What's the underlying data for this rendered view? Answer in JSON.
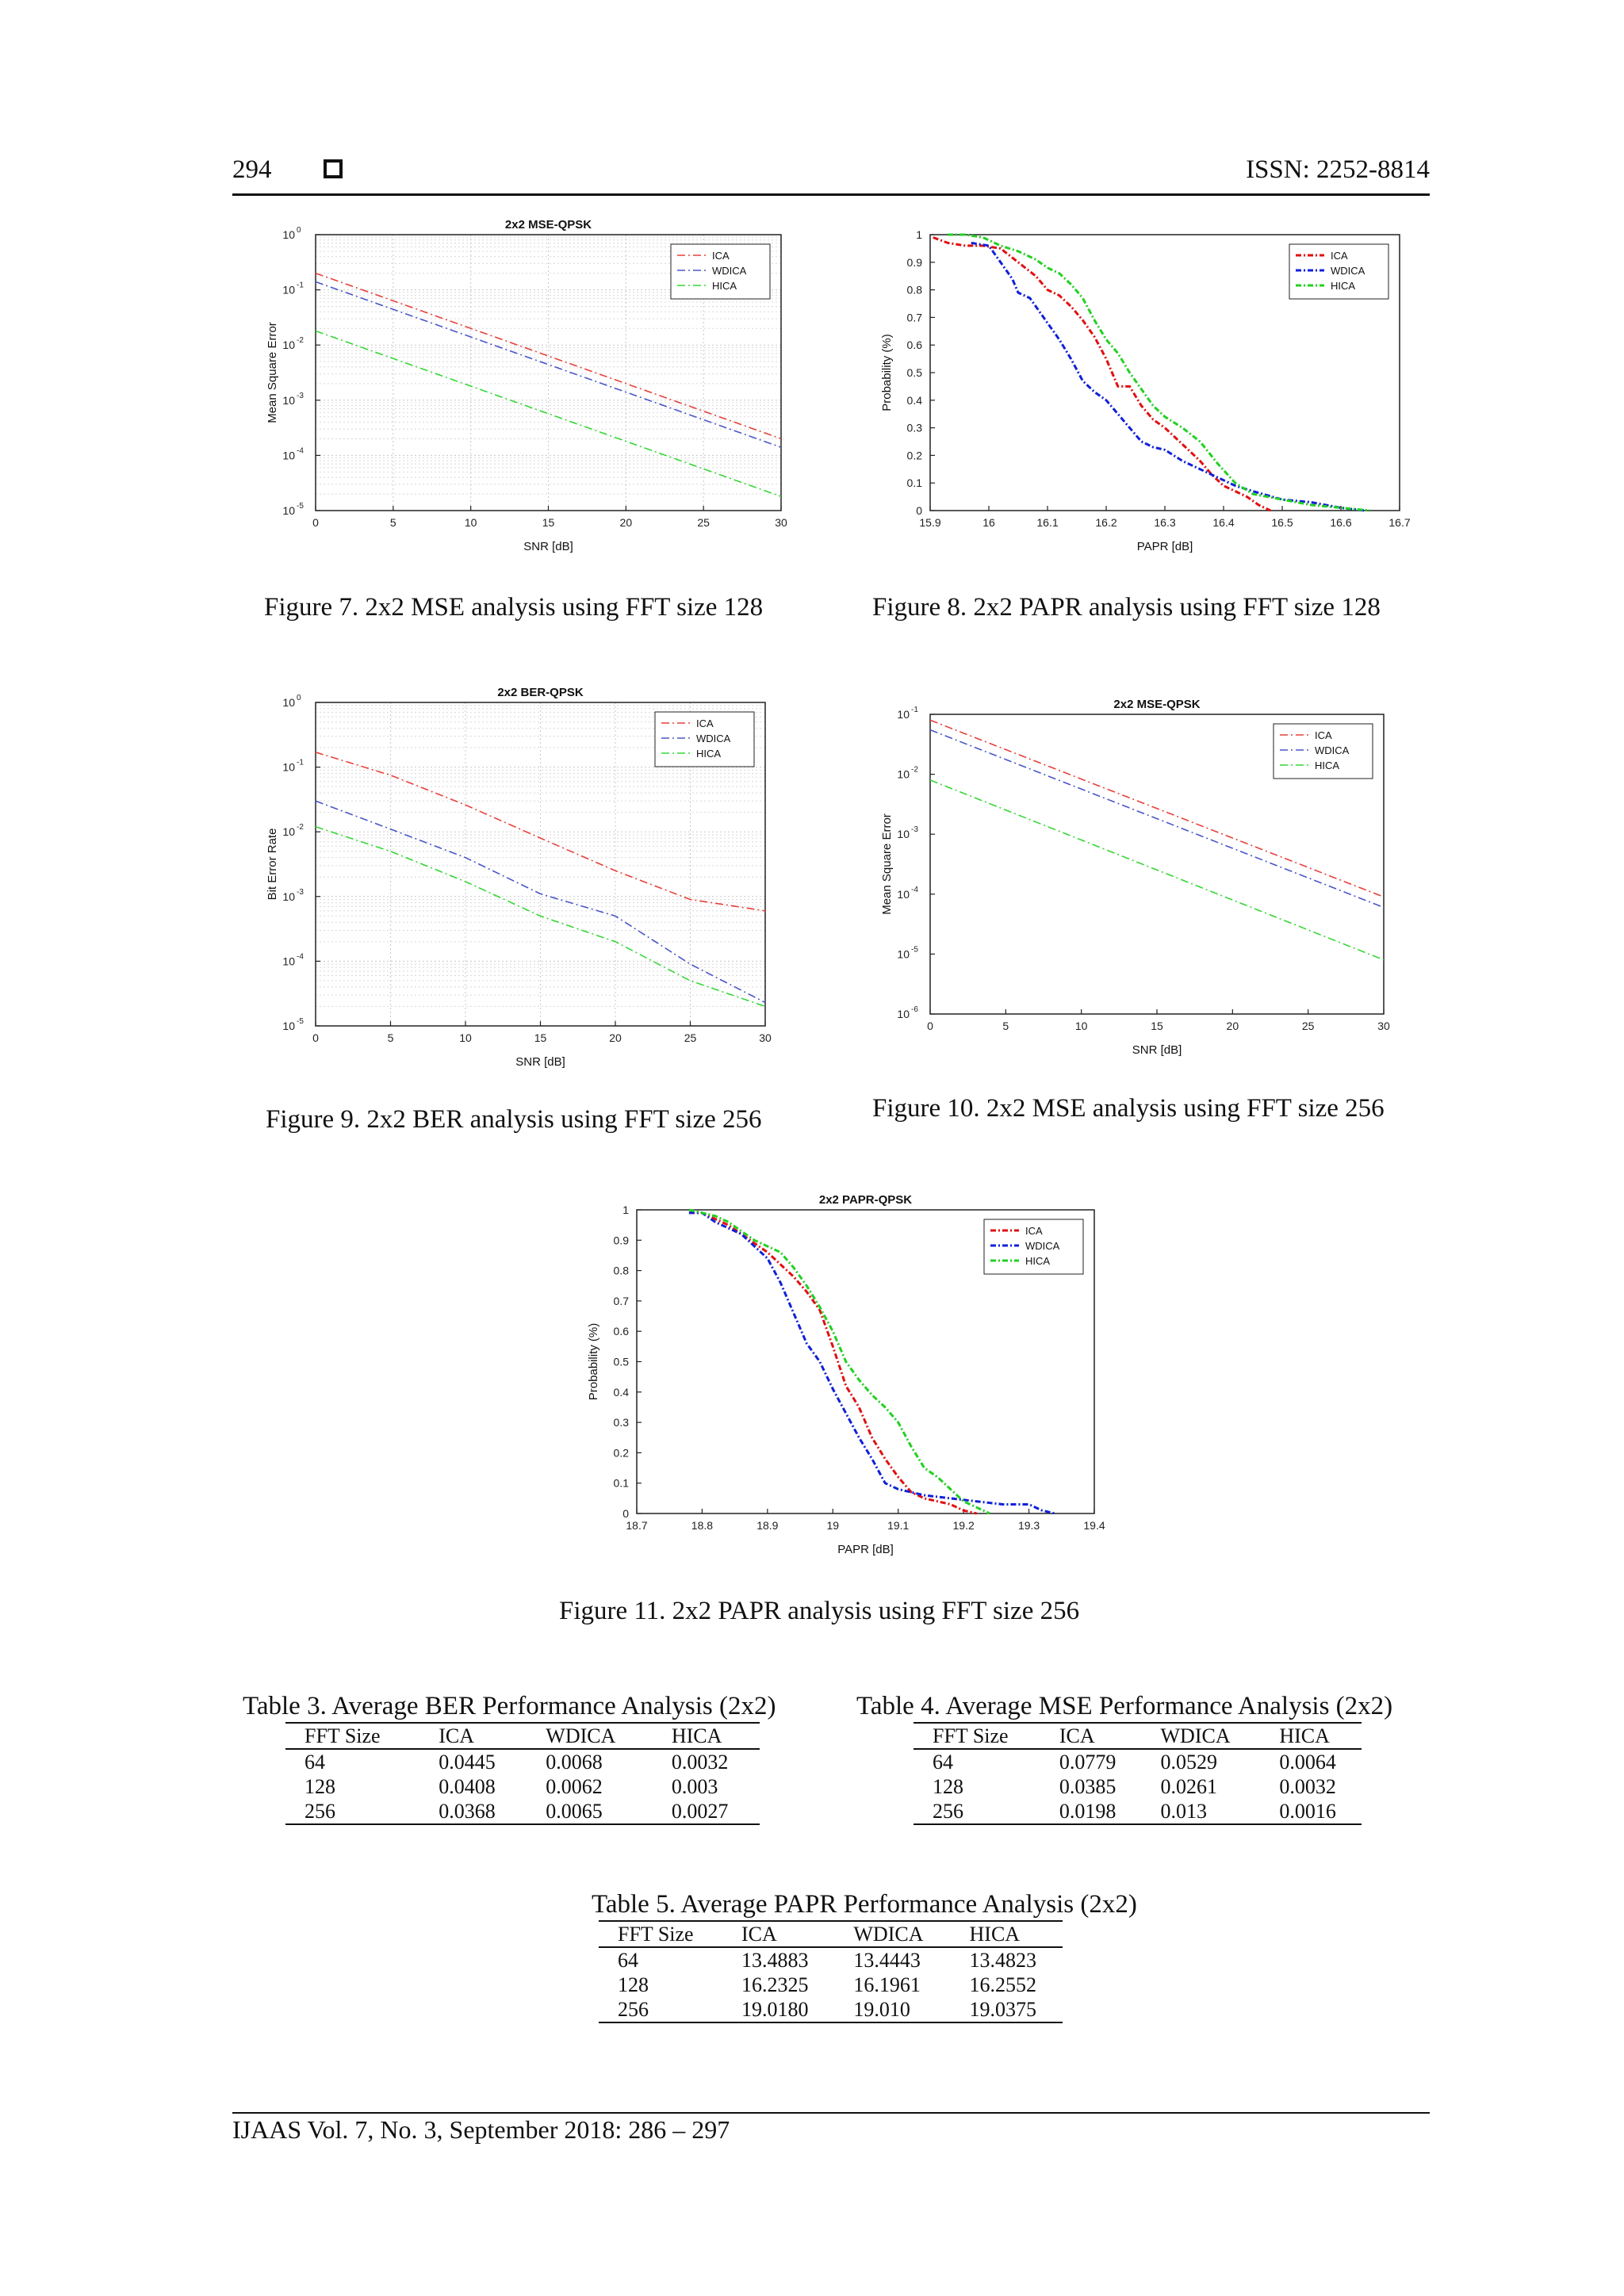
{
  "header": {
    "page_number": "294",
    "issn": "ISSN: 2252-8814"
  },
  "footer": {
    "citation": "IJAAS  Vol. 7, No. 3, September 2018:  286 – 297"
  },
  "captions": {
    "fig7": "Figure 7. 2x2 MSE analysis using FFT size 128",
    "fig8": "Figure 8. 2x2 PAPR analysis using FFT size 128",
    "fig9": "Figure 9. 2x2 BER analysis using FFT size 256",
    "fig10": "Figure 10. 2x2 MSE analysis using FFT size 256",
    "fig11": "Figure 11. 2x2 PAPR analysis using FFT size 256"
  },
  "chart_data": [
    {
      "id": "fig7",
      "type": "line",
      "log_y": true,
      "title": "2x2 MSE-QPSK",
      "xlabel": "SNR [dB]",
      "ylabel": "Mean Square Error",
      "xlim": [
        0,
        30
      ],
      "ylim_exp": [
        -5,
        0
      ],
      "xticks": [
        "0",
        "5",
        "10",
        "15",
        "20",
        "25",
        "30"
      ],
      "yticks": [
        "10",
        "10",
        "10",
        "10",
        "10",
        "10"
      ],
      "ytick_exps": [
        "-5",
        "-4",
        "-3",
        "-2",
        "-1",
        "0"
      ],
      "grid": true,
      "legend": "top-right",
      "dash": "dashdot",
      "series": [
        {
          "name": "ICA",
          "color": "#e8403a",
          "x": [
            0,
            30
          ],
          "y": [
            0.2,
            0.0002
          ]
        },
        {
          "name": "WDICA",
          "color": "#4a56c8",
          "x": [
            0,
            30
          ],
          "y": [
            0.14,
            0.00014
          ]
        },
        {
          "name": "HICA",
          "color": "#36d636",
          "x": [
            0,
            30
          ],
          "y": [
            0.018,
            1.8e-05
          ]
        }
      ]
    },
    {
      "id": "fig8",
      "type": "line",
      "log_y": false,
      "title": "",
      "xlabel": "PAPR [dB]",
      "ylabel": "Probability (%)",
      "xlim": [
        15.9,
        16.7
      ],
      "ylim": [
        0,
        1
      ],
      "xticks": [
        "15.9",
        "16",
        "16.1",
        "16.2",
        "16.3",
        "16.4",
        "16.5",
        "16.6",
        "16.7"
      ],
      "yticks": [
        "0",
        "0.1",
        "0.2",
        "0.3",
        "0.4",
        "0.5",
        "0.6",
        "0.7",
        "0.8",
        "0.9",
        "1"
      ],
      "grid": false,
      "legend": "top-right",
      "dash": "dotdash",
      "series": [
        {
          "name": "ICA",
          "color": "#e01010",
          "x": [
            15.905,
            15.93,
            15.96,
            15.99,
            16.02,
            16.05,
            16.08,
            16.1,
            16.12,
            16.14,
            16.16,
            16.18,
            16.2,
            16.22,
            16.24,
            16.26,
            16.28,
            16.3,
            16.32,
            16.34,
            16.36,
            16.38,
            16.4,
            16.42,
            16.44,
            16.46,
            16.47,
            16.48
          ],
          "y": [
            0.99,
            0.97,
            0.96,
            0.96,
            0.95,
            0.9,
            0.85,
            0.8,
            0.78,
            0.74,
            0.69,
            0.63,
            0.55,
            0.45,
            0.45,
            0.38,
            0.33,
            0.3,
            0.26,
            0.22,
            0.18,
            0.13,
            0.09,
            0.07,
            0.05,
            0.02,
            0.01,
            0
          ]
        },
        {
          "name": "WDICA",
          "color": "#1020d8",
          "x": [
            15.97,
            16.0,
            16.02,
            16.04,
            16.05,
            16.07,
            16.09,
            16.1,
            16.12,
            16.14,
            16.16,
            16.18,
            16.2,
            16.22,
            16.24,
            16.26,
            16.28,
            16.3,
            16.33,
            16.36,
            16.39,
            16.42,
            16.45,
            16.5,
            16.55,
            16.6,
            16.64
          ],
          "y": [
            0.97,
            0.96,
            0.9,
            0.84,
            0.79,
            0.77,
            0.71,
            0.68,
            0.62,
            0.55,
            0.47,
            0.43,
            0.4,
            0.35,
            0.3,
            0.25,
            0.23,
            0.22,
            0.18,
            0.15,
            0.12,
            0.09,
            0.07,
            0.04,
            0.03,
            0.01,
            0
          ]
        },
        {
          "name": "HICA",
          "color": "#22d022",
          "x": [
            15.93,
            15.96,
            15.99,
            16.02,
            16.05,
            16.08,
            16.1,
            16.12,
            16.14,
            16.16,
            16.18,
            16.2,
            16.22,
            16.24,
            16.26,
            16.28,
            16.3,
            16.33,
            16.36,
            16.39,
            16.42,
            16.45,
            16.5,
            16.55,
            16.6,
            16.65
          ],
          "y": [
            1.0,
            1.0,
            0.99,
            0.96,
            0.94,
            0.91,
            0.88,
            0.86,
            0.82,
            0.77,
            0.69,
            0.62,
            0.57,
            0.5,
            0.44,
            0.38,
            0.34,
            0.3,
            0.25,
            0.17,
            0.1,
            0.06,
            0.04,
            0.02,
            0.01,
            0
          ]
        }
      ]
    },
    {
      "id": "fig9",
      "type": "line",
      "log_y": true,
      "title": "2x2 BER-QPSK",
      "xlabel": "SNR [dB]",
      "ylabel": "Bit Error Rate",
      "xlim": [
        0,
        30
      ],
      "ylim_exp": [
        -5,
        0
      ],
      "xticks": [
        "0",
        "5",
        "10",
        "15",
        "20",
        "25",
        "30"
      ],
      "yticks": [
        "10",
        "10",
        "10",
        "10",
        "10",
        "10"
      ],
      "ytick_exps": [
        "-5",
        "-4",
        "-3",
        "-2",
        "-1",
        "0"
      ],
      "grid": true,
      "legend": "top-right",
      "dash": "dashdot",
      "series": [
        {
          "name": "ICA",
          "color": "#e8403a",
          "x": [
            0,
            5,
            10,
            15,
            20,
            25,
            30
          ],
          "y": [
            0.17,
            0.075,
            0.026,
            0.008,
            0.0025,
            0.0009,
            0.0006
          ]
        },
        {
          "name": "WDICA",
          "color": "#4a56c8",
          "x": [
            0,
            5,
            10,
            15,
            20,
            25,
            30
          ],
          "y": [
            0.03,
            0.011,
            0.004,
            0.0011,
            0.0005,
            9e-05,
            2.3e-05
          ]
        },
        {
          "name": "HICA",
          "color": "#36d636",
          "x": [
            0,
            5,
            10,
            15,
            20,
            25,
            30
          ],
          "y": [
            0.012,
            0.005,
            0.0017,
            0.0005,
            0.0002,
            5e-05,
            2e-05
          ]
        }
      ]
    },
    {
      "id": "fig10",
      "type": "line",
      "log_y": true,
      "title": "2x2 MSE-QPSK",
      "xlabel": "SNR [dB]",
      "ylabel": "Mean Square Error",
      "xlim": [
        0,
        30
      ],
      "ylim_exp": [
        -6,
        -1
      ],
      "xticks": [
        "0",
        "5",
        "10",
        "15",
        "20",
        "25",
        "30"
      ],
      "yticks": [
        "10",
        "10",
        "10",
        "10",
        "10",
        "10"
      ],
      "ytick_exps": [
        "-6",
        "-5",
        "-4",
        "-3",
        "-2",
        "-1"
      ],
      "grid": false,
      "legend": "top-right",
      "dash": "dashdot",
      "series": [
        {
          "name": "ICA",
          "color": "#e8403a",
          "x": [
            0,
            30
          ],
          "y": [
            0.08,
            9e-05
          ]
        },
        {
          "name": "WDICA",
          "color": "#4a56c8",
          "x": [
            0,
            30
          ],
          "y": [
            0.055,
            6e-05
          ]
        },
        {
          "name": "HICA",
          "color": "#36d636",
          "x": [
            0,
            30
          ],
          "y": [
            0.008,
            8e-06
          ]
        }
      ]
    },
    {
      "id": "fig11",
      "type": "line",
      "log_y": false,
      "title": "2x2 PAPR-QPSK",
      "xlabel": "PAPR [dB]",
      "ylabel": "Probability (%)",
      "xlim": [
        18.7,
        19.4
      ],
      "ylim": [
        0,
        1
      ],
      "xticks": [
        "18.7",
        "18.8",
        "18.9",
        "19",
        "19.1",
        "19.2",
        "19.3",
        "19.4"
      ],
      "yticks": [
        "0",
        "0.1",
        "0.2",
        "0.3",
        "0.4",
        "0.5",
        "0.6",
        "0.7",
        "0.8",
        "0.9",
        "1"
      ],
      "grid": false,
      "legend": "top-right",
      "dash": "dotdash",
      "series": [
        {
          "name": "ICA",
          "color": "#e01010",
          "x": [
            18.78,
            18.8,
            18.82,
            18.84,
            18.86,
            18.88,
            18.9,
            18.92,
            18.94,
            18.96,
            18.98,
            19.0,
            19.02,
            19.04,
            19.06,
            19.08,
            19.1,
            19.12,
            19.14,
            19.16,
            19.18,
            19.2,
            19.22
          ],
          "y": [
            0.99,
            0.99,
            0.97,
            0.95,
            0.92,
            0.89,
            0.86,
            0.82,
            0.78,
            0.73,
            0.67,
            0.55,
            0.42,
            0.35,
            0.25,
            0.18,
            0.12,
            0.07,
            0.05,
            0.04,
            0.03,
            0.01,
            0
          ]
        },
        {
          "name": "WDICA",
          "color": "#1020d8",
          "x": [
            18.78,
            18.8,
            18.82,
            18.84,
            18.86,
            18.88,
            18.9,
            18.92,
            18.94,
            18.96,
            18.98,
            19.0,
            19.02,
            19.04,
            19.06,
            19.08,
            19.1,
            19.14,
            19.18,
            19.22,
            19.26,
            19.3,
            19.32,
            19.34
          ],
          "y": [
            0.99,
            0.99,
            0.96,
            0.94,
            0.92,
            0.88,
            0.84,
            0.76,
            0.66,
            0.56,
            0.5,
            0.41,
            0.33,
            0.25,
            0.18,
            0.1,
            0.08,
            0.06,
            0.05,
            0.04,
            0.03,
            0.03,
            0.01,
            0
          ]
        },
        {
          "name": "HICA",
          "color": "#22d022",
          "x": [
            18.78,
            18.8,
            18.82,
            18.84,
            18.86,
            18.88,
            18.9,
            18.92,
            18.94,
            18.96,
            18.98,
            19.0,
            19.02,
            19.04,
            19.06,
            19.08,
            19.1,
            19.12,
            19.14,
            19.16,
            19.18,
            19.2,
            19.22,
            19.24
          ],
          "y": [
            1.0,
            0.99,
            0.98,
            0.96,
            0.93,
            0.9,
            0.88,
            0.86,
            0.81,
            0.75,
            0.68,
            0.6,
            0.5,
            0.44,
            0.39,
            0.35,
            0.3,
            0.22,
            0.15,
            0.12,
            0.08,
            0.04,
            0.02,
            0
          ]
        }
      ]
    }
  ],
  "tables": [
    {
      "id": "table3",
      "title": "Table 3. Average BER Performance Analysis (2x2)",
      "columns": [
        "FFT Size",
        "ICA",
        "WDICA",
        "HICA"
      ],
      "rows": [
        [
          "64",
          "0.0445",
          "0.0068",
          "0.0032"
        ],
        [
          "128",
          "0.0408",
          "0.0062",
          "0.003"
        ],
        [
          "256",
          "0.0368",
          "0.0065",
          "0.0027"
        ]
      ]
    },
    {
      "id": "table4",
      "title": "Table 4. Average MSE Performance Analysis (2x2)",
      "columns": [
        "FFT Size",
        "ICA",
        "WDICA",
        "HICA"
      ],
      "rows": [
        [
          "64",
          "0.0779",
          "0.0529",
          "0.0064"
        ],
        [
          "128",
          "0.0385",
          "0.0261",
          "0.0032"
        ],
        [
          "256",
          "0.0198",
          "0.013",
          "0.0016"
        ]
      ]
    },
    {
      "id": "table5",
      "title": "Table 5. Average PAPR Performance Analysis (2x2)",
      "columns": [
        "FFT Size",
        "ICA",
        "WDICA",
        "HICA"
      ],
      "rows": [
        [
          "64",
          "13.4883",
          "13.4443",
          "13.4823"
        ],
        [
          "128",
          "16.2325",
          "16.1961",
          "16.2552"
        ],
        [
          "256",
          "19.0180",
          "19.010",
          "19.0375"
        ]
      ]
    }
  ]
}
